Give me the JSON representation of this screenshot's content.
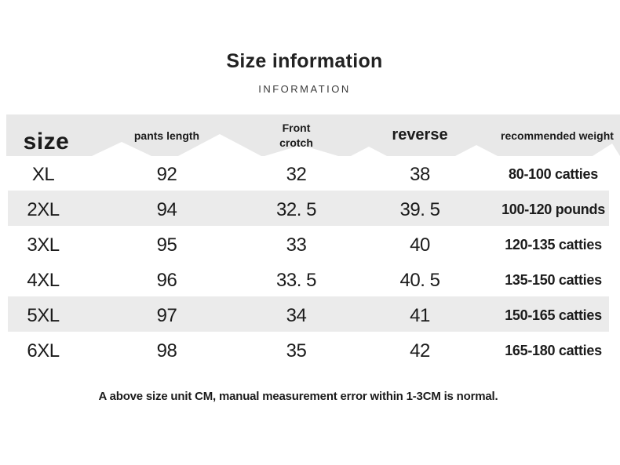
{
  "title": "Size information",
  "subtitle": "INFORMATION",
  "table": {
    "columns": [
      {
        "key": "size",
        "label": "size"
      },
      {
        "key": "pants_length",
        "label": "pants length"
      },
      {
        "key": "front_crotch",
        "label": "Front\ncrotch"
      },
      {
        "key": "reverse",
        "label": "reverse"
      },
      {
        "key": "weight",
        "label": "recommended weight"
      }
    ],
    "rows": [
      {
        "size": "XL",
        "pants_length": "92",
        "front_crotch": "32",
        "reverse": "38",
        "weight": "80-100 catties"
      },
      {
        "size": "2XL",
        "pants_length": "94",
        "front_crotch": "32. 5",
        "reverse": "39. 5",
        "weight": "100-120 pounds"
      },
      {
        "size": "3XL",
        "pants_length": "95",
        "front_crotch": "33",
        "reverse": "40",
        "weight": "120-135 catties"
      },
      {
        "size": "4XL",
        "pants_length": "96",
        "front_crotch": "33. 5",
        "reverse": "40. 5",
        "weight": "135-150 catties"
      },
      {
        "size": "5XL",
        "pants_length": "97",
        "front_crotch": "34",
        "reverse": "41",
        "weight": "150-165 catties"
      },
      {
        "size": "6XL",
        "pants_length": "98",
        "front_crotch": "35",
        "reverse": "42",
        "weight": "165-180 catties"
      }
    ],
    "striped_row_indexes": [
      1,
      4
    ]
  },
  "footer_note": "A above size unit CM, manual measurement error within 1-3CM is normal.",
  "units_note": "CM",
  "colors": {
    "header_band": "#e8e8e8",
    "row_stripe": "#ebebeb",
    "text": "#1b1b1b",
    "subtitle_text": "#3a3a3a"
  }
}
